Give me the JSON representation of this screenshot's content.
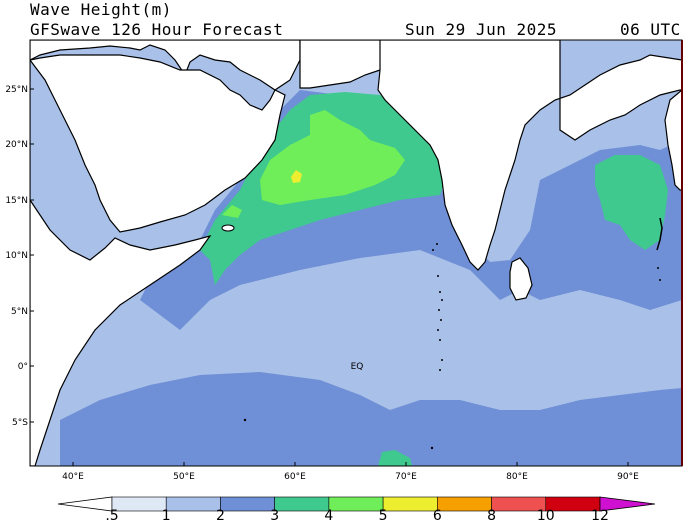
{
  "header": {
    "title": "Wave Height(m)",
    "subtitle": "GFSwave 126 Hour Forecast",
    "date": "Sun 29 Jun 2025",
    "time": "06 UTC"
  },
  "map": {
    "lat_labels": [
      "25°N",
      "20°N",
      "15°N",
      "10°N",
      "5°N",
      "0°",
      "5°S"
    ],
    "lon_labels": [
      "40°E",
      "50°E",
      "60°E",
      "70°E",
      "80°E",
      "90°E"
    ],
    "equator_label": "EQ"
  },
  "colorbar": {
    "labels": [
      ".5",
      "1",
      "2",
      "3",
      "4",
      "5",
      "6",
      "8",
      "10",
      "12"
    ],
    "colors": [
      "#ffffff",
      "#dfe8f5",
      "#a9c0e8",
      "#6f8fd6",
      "#3fc98f",
      "#70ee5a",
      "#eeee30",
      "#f5a000",
      "#ef5050",
      "#d00010",
      "#d010d0"
    ]
  },
  "colors": {
    "land": "#ffffff",
    "coast": "#000000",
    "sea_1_2": "#a9c0e8",
    "sea_2_3": "#6f8fd6",
    "sea_3_4": "#3fc98f",
    "sea_4_5": "#70ee5a",
    "sea_5_6": "#eeee30"
  }
}
